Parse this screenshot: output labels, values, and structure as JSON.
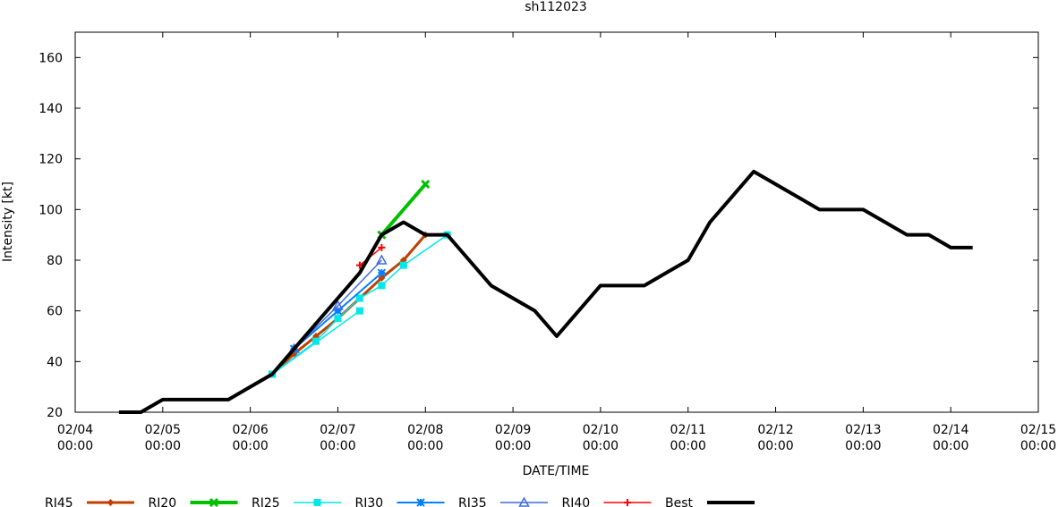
{
  "chart_data": {
    "type": "line",
    "title": "sh112023",
    "xlabel": "DATE/TIME",
    "ylabel": "Intensity [kt]",
    "ylim": [
      20,
      170
    ],
    "xlim_days": [
      0,
      11
    ],
    "x_unit": "days since 02/04 00:00",
    "yticks": [
      20,
      40,
      60,
      80,
      100,
      120,
      140,
      160
    ],
    "xticks": [
      {
        "d": 0,
        "l1": "02/04",
        "l2": "00:00"
      },
      {
        "d": 1,
        "l1": "02/05",
        "l2": "00:00"
      },
      {
        "d": 2,
        "l1": "02/06",
        "l2": "00:00"
      },
      {
        "d": 3,
        "l1": "02/07",
        "l2": "00:00"
      },
      {
        "d": 4,
        "l1": "02/08",
        "l2": "00:00"
      },
      {
        "d": 5,
        "l1": "02/09",
        "l2": "00:00"
      },
      {
        "d": 6,
        "l1": "02/10",
        "l2": "00:00"
      },
      {
        "d": 7,
        "l1": "02/11",
        "l2": "00:00"
      },
      {
        "d": 8,
        "l1": "02/12",
        "l2": "00:00"
      },
      {
        "d": 9,
        "l1": "02/13",
        "l2": "00:00"
      },
      {
        "d": 10,
        "l1": "02/14",
        "l2": "00:00"
      },
      {
        "d": 11,
        "l1": "02/15",
        "l2": "00:00"
      }
    ],
    "legend_position": "bottom",
    "series": [
      {
        "name": "RI45",
        "color": "#c04000",
        "marker": "diamond",
        "width": 3,
        "lines": [
          [
            [
              2.25,
              35
            ],
            [
              2.5,
              43
            ],
            [
              2.75,
              50
            ],
            [
              3.0,
              57
            ],
            [
              3.25,
              65
            ],
            [
              3.5,
              73
            ],
            [
              3.75,
              80
            ],
            [
              4.0,
              90
            ]
          ]
        ]
      },
      {
        "name": "RI20",
        "color": "#00c000",
        "marker": "x",
        "width": 4,
        "lines": [
          [
            [
              3.5,
              90
            ],
            [
              4.0,
              110
            ]
          ]
        ]
      },
      {
        "name": "RI25",
        "color": "#00e8e8",
        "marker": "square",
        "width": 1.5,
        "lines": [
          [
            [
              2.25,
              35
            ],
            [
              2.75,
              48
            ],
            [
              3.0,
              57
            ],
            [
              3.25,
              65
            ],
            [
              3.5,
              70
            ],
            [
              3.75,
              78
            ],
            [
              4.25,
              90
            ]
          ],
          [
            [
              2.25,
              35
            ],
            [
              3.25,
              60
            ]
          ]
        ]
      },
      {
        "name": "RI30",
        "color": "#0080ff",
        "marker": "star",
        "width": 2,
        "lines": [
          [
            [
              2.5,
              45
            ],
            [
              3.0,
              60
            ],
            [
              3.5,
              75
            ]
          ]
        ]
      },
      {
        "name": "RI35",
        "color": "#4169e1",
        "marker": "triangle",
        "width": 1.5,
        "lines": [
          [
            [
              2.5,
              45
            ],
            [
              3.0,
              62
            ],
            [
              3.5,
              80
            ]
          ]
        ]
      },
      {
        "name": "RI40",
        "color": "#ff0000",
        "marker": "plus",
        "width": 1.5,
        "lines": [
          [
            [
              3.25,
              78
            ],
            [
              3.5,
              85
            ]
          ]
        ]
      },
      {
        "name": "Best",
        "color": "#000000",
        "marker": "none",
        "width": 4,
        "lines": [
          [
            [
              0.5,
              20
            ],
            [
              0.75,
              20
            ],
            [
              1.0,
              25
            ],
            [
              1.25,
              25
            ],
            [
              1.5,
              25
            ],
            [
              1.75,
              25
            ],
            [
              2.0,
              30
            ],
            [
              2.25,
              35
            ],
            [
              2.5,
              45
            ],
            [
              2.75,
              55
            ],
            [
              3.0,
              65
            ],
            [
              3.25,
              75
            ],
            [
              3.5,
              90
            ],
            [
              3.75,
              95
            ],
            [
              4.0,
              90
            ],
            [
              4.25,
              90
            ],
            [
              4.5,
              80
            ],
            [
              4.75,
              70
            ],
            [
              5.0,
              65
            ],
            [
              5.25,
              60
            ],
            [
              5.5,
              50
            ],
            [
              5.75,
              60
            ],
            [
              6.0,
              70
            ],
            [
              6.25,
              70
            ],
            [
              6.5,
              70
            ],
            [
              6.75,
              75
            ],
            [
              7.0,
              80
            ],
            [
              7.25,
              95
            ],
            [
              7.5,
              105
            ],
            [
              7.75,
              115
            ],
            [
              8.0,
              110
            ],
            [
              8.25,
              105
            ],
            [
              8.5,
              100
            ],
            [
              8.75,
              100
            ],
            [
              9.0,
              100
            ],
            [
              9.25,
              95
            ],
            [
              9.5,
              90
            ],
            [
              9.75,
              90
            ],
            [
              10.0,
              85
            ],
            [
              10.25,
              85
            ]
          ]
        ]
      }
    ]
  }
}
